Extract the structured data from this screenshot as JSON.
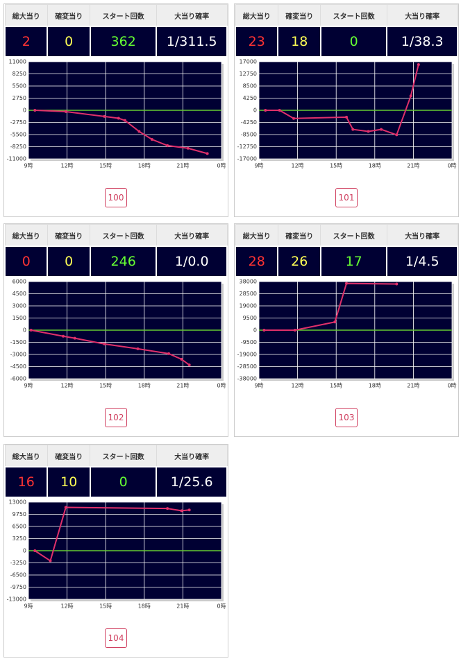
{
  "stat_colors": [
    "#ff3333",
    "#ffff55",
    "#66ff33",
    "#ffffff"
  ],
  "panels": [
    {
      "headers": [
        "総大当り",
        "確変当り",
        "スタート回数",
        "大当り確率"
      ],
      "stats": [
        "2",
        "0",
        "362",
        "1/311.5"
      ],
      "button": "100"
    },
    {
      "headers": [
        "総大当り",
        "確変当り",
        "スタート回数",
        "大当り確率"
      ],
      "stats": [
        "23",
        "18",
        "0",
        "1/38.3"
      ],
      "button": "101"
    },
    {
      "headers": [
        "総大当り",
        "確変当り",
        "スタート回数",
        "大当り確率"
      ],
      "stats": [
        "0",
        "0",
        "246",
        "1/0.0"
      ],
      "button": "102"
    },
    {
      "headers": [
        "総大当り",
        "確変当り",
        "スタート回数",
        "大当り確率"
      ],
      "stats": [
        "28",
        "26",
        "17",
        "1/4.5"
      ],
      "button": "103"
    },
    {
      "headers": [
        "総大当り",
        "確変当り",
        "スタート回数",
        "大当り確率"
      ],
      "stats": [
        "16",
        "10",
        "0",
        "1/25.6"
      ],
      "button": "104"
    }
  ],
  "chart_data": [
    {
      "type": "line",
      "color": "#e0306a",
      "zero_line_color": "#66cc33",
      "background": "#000033",
      "grid": true,
      "x": [
        9.5,
        11.9,
        14.9,
        16.0,
        16.5,
        17.6,
        18.6,
        19.8,
        21.4,
        22.9
      ],
      "values": [
        0,
        -300,
        -1400,
        -1800,
        -2300,
        -4800,
        -6600,
        -8000,
        -8600,
        -9800
      ],
      "xlim": [
        9,
        24
      ],
      "xticks": [
        {
          "value": 9,
          "label": "9時"
        },
        {
          "value": 12,
          "label": "12時"
        },
        {
          "value": 15,
          "label": "15時"
        },
        {
          "value": 18,
          "label": "18時"
        },
        {
          "value": 21,
          "label": "21時"
        },
        {
          "value": 24,
          "label": "0時"
        }
      ],
      "ylim": [
        -11000,
        11000
      ],
      "yticks": [
        11000,
        8250,
        5500,
        2750,
        0,
        -2750,
        -5500,
        -8250,
        -11000
      ]
    },
    {
      "type": "line",
      "color": "#e0306a",
      "zero_line_color": "#66cc33",
      "background": "#000033",
      "grid": true,
      "x": [
        9.5,
        10.6,
        11.7,
        15.8,
        16.3,
        17.5,
        18.5,
        19.7,
        20.8,
        21.4
      ],
      "values": [
        0,
        0,
        -2850,
        -2400,
        -6700,
        -7400,
        -6700,
        -8600,
        5000,
        16000
      ],
      "xlim": [
        9,
        24
      ],
      "xticks": [
        {
          "value": 9,
          "label": "9時"
        },
        {
          "value": 12,
          "label": "12時"
        },
        {
          "value": 15,
          "label": "15時"
        },
        {
          "value": 18,
          "label": "18時"
        },
        {
          "value": 21,
          "label": "21時"
        },
        {
          "value": 24,
          "label": "0時"
        }
      ],
      "ylim": [
        -17000,
        17000
      ],
      "yticks": [
        17000,
        12750,
        8500,
        4250,
        0,
        -4250,
        -8500,
        -12750,
        -17000
      ]
    },
    {
      "type": "line",
      "color": "#e0306a",
      "zero_line_color": "#66cc33",
      "background": "#000033",
      "grid": true,
      "x": [
        9.2,
        11.7,
        12.6,
        14.9,
        17.5,
        19.9,
        20.9,
        21.5
      ],
      "values": [
        0,
        -750,
        -1000,
        -1700,
        -2300,
        -2900,
        -3600,
        -4300
      ],
      "xlim": [
        9,
        24
      ],
      "xticks": [
        {
          "value": 9,
          "label": "9時"
        },
        {
          "value": 12,
          "label": "12時"
        },
        {
          "value": 15,
          "label": "15時"
        },
        {
          "value": 18,
          "label": "18時"
        },
        {
          "value": 21,
          "label": "21時"
        },
        {
          "value": 24,
          "label": "0時"
        }
      ],
      "ylim": [
        -6000,
        6000
      ],
      "yticks": [
        6000,
        4500,
        3000,
        1500,
        0,
        -1500,
        -3000,
        -4500,
        -6000
      ]
    },
    {
      "type": "line",
      "color": "#e0306a",
      "zero_line_color": "#66cc33",
      "background": "#000033",
      "grid": true,
      "x": [
        9.4,
        11.8,
        14.9,
        15.8,
        19.7
      ],
      "values": [
        0,
        0,
        6400,
        36600,
        36100
      ],
      "xlim": [
        9,
        24
      ],
      "xticks": [
        {
          "value": 9,
          "label": "9時"
        },
        {
          "value": 12,
          "label": "12時"
        },
        {
          "value": 15,
          "label": "15時"
        },
        {
          "value": 18,
          "label": "18時"
        },
        {
          "value": 21,
          "label": "21時"
        },
        {
          "value": 24,
          "label": "0時"
        }
      ],
      "ylim": [
        -38000,
        38000
      ],
      "yticks": [
        38000,
        28500,
        19000,
        9500,
        0,
        -9500,
        -19000,
        -28500,
        -38000
      ]
    },
    {
      "type": "line",
      "color": "#e0306a",
      "zero_line_color": "#66cc33",
      "background": "#000033",
      "grid": true,
      "x": [
        9.5,
        10.7,
        11.9,
        19.8,
        20.9,
        21.5
      ],
      "values": [
        0,
        -2700,
        11600,
        11300,
        10700,
        10900
      ],
      "xlim": [
        9,
        24
      ],
      "xticks": [
        {
          "value": 9,
          "label": "9時"
        },
        {
          "value": 12,
          "label": "12時"
        },
        {
          "value": 15,
          "label": "15時"
        },
        {
          "value": 18,
          "label": "18時"
        },
        {
          "value": 21,
          "label": "21時"
        },
        {
          "value": 24,
          "label": "0時"
        }
      ],
      "ylim": [
        -13000,
        13000
      ],
      "yticks": [
        13000,
        9750,
        6500,
        3250,
        0,
        -3250,
        -6500,
        -9750,
        -13000
      ]
    }
  ]
}
